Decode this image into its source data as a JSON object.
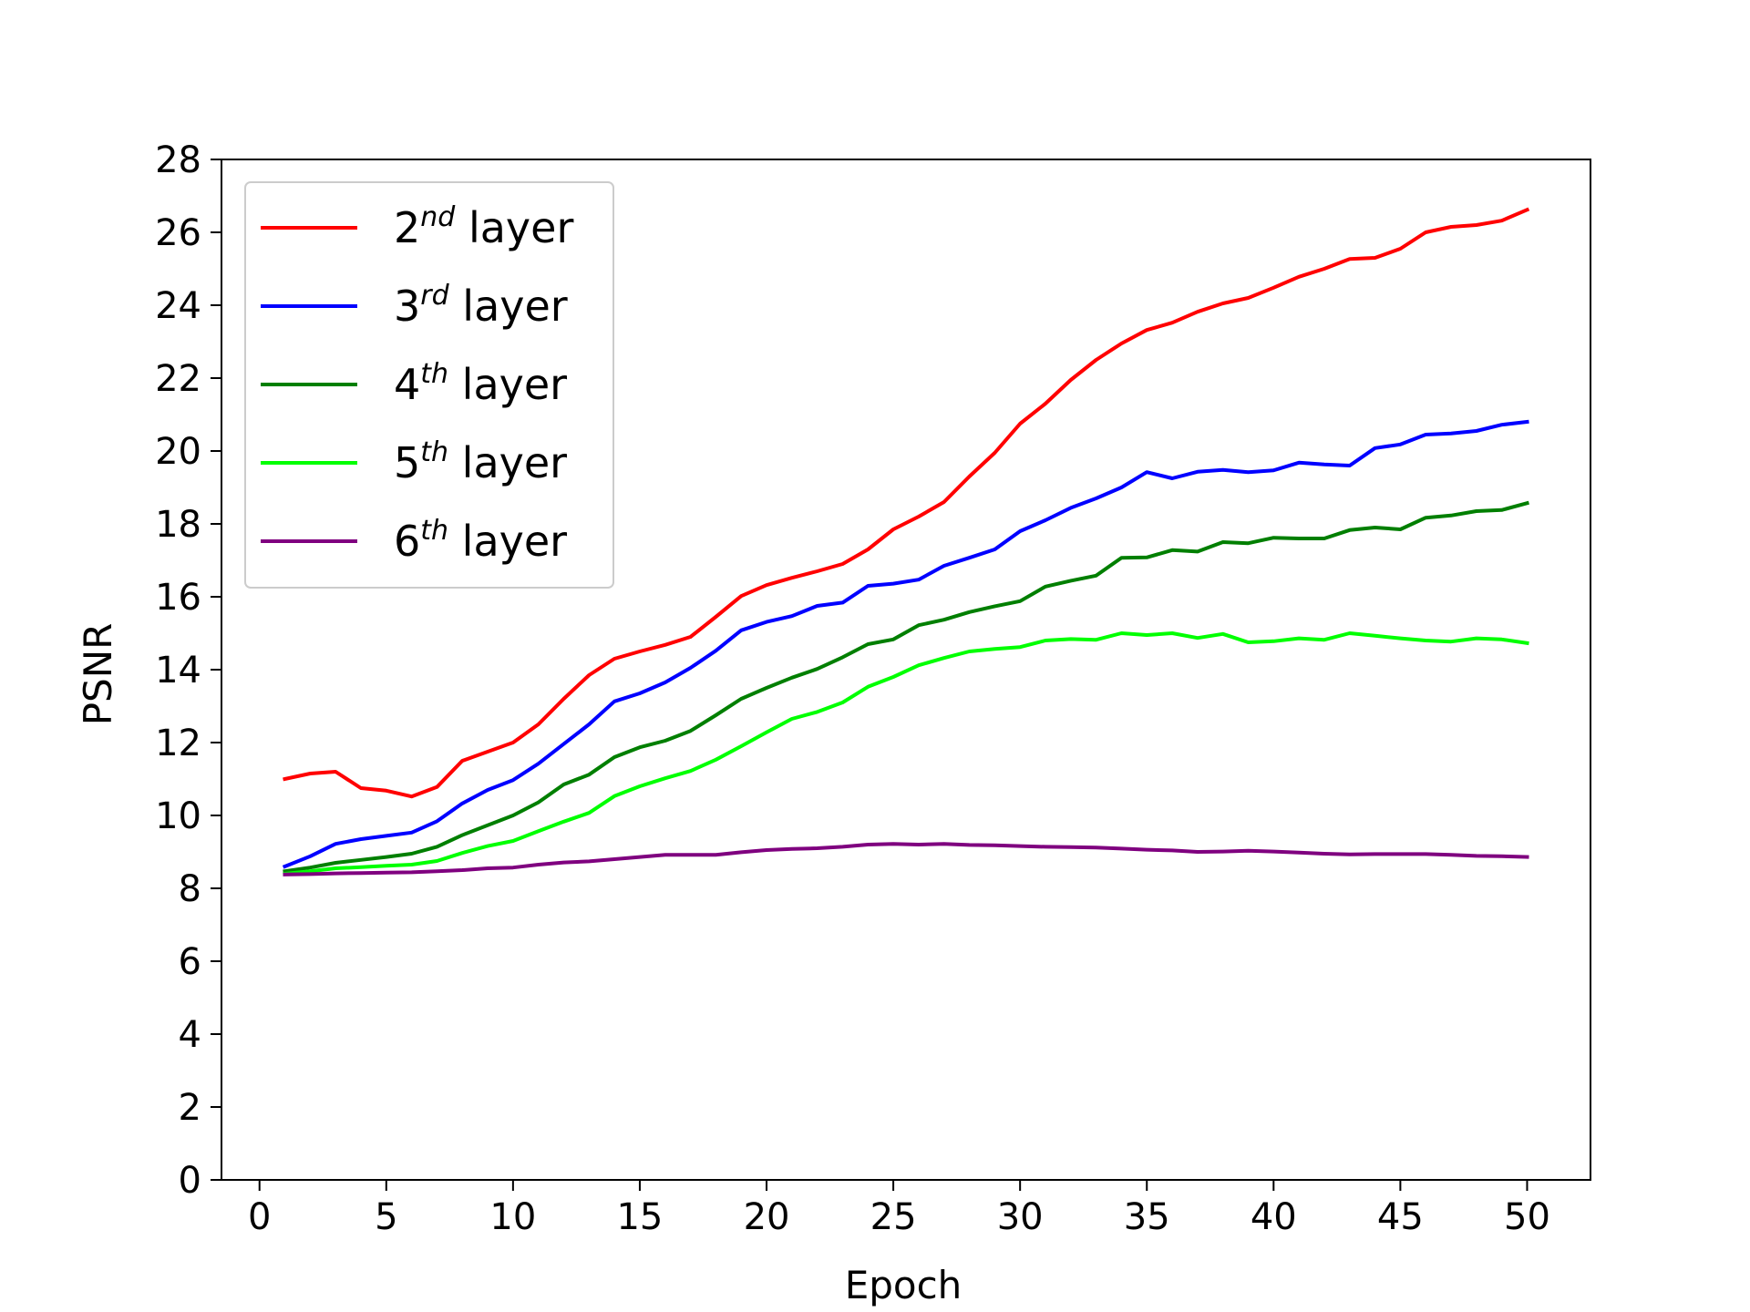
{
  "chart_data": {
    "type": "line",
    "xlabel": "Epoch",
    "ylabel": "PSNR",
    "xlim": [
      -1.5,
      52.5
    ],
    "ylim": [
      0,
      28
    ],
    "xticks": [
      0,
      5,
      10,
      15,
      20,
      25,
      30,
      35,
      40,
      45,
      50
    ],
    "yticks": [
      0,
      2,
      4,
      6,
      8,
      10,
      12,
      14,
      16,
      18,
      20,
      22,
      24,
      26,
      28
    ],
    "grid": false,
    "legend_position": "top-left",
    "x": [
      1,
      2,
      3,
      4,
      5,
      6,
      7,
      8,
      9,
      10,
      11,
      12,
      13,
      14,
      15,
      16,
      17,
      18,
      19,
      20,
      21,
      22,
      23,
      24,
      25,
      26,
      27,
      28,
      29,
      30,
      31,
      32,
      33,
      34,
      35,
      36,
      37,
      38,
      39,
      40,
      41,
      42,
      43,
      44,
      45,
      46,
      47,
      48,
      49,
      50
    ],
    "series": [
      {
        "name": "2nd layer",
        "label_base": "2",
        "label_sup": "nd",
        "label_rest": " layer",
        "color": "#ff0000",
        "values": [
          11.0,
          11.15,
          11.2,
          10.75,
          10.68,
          10.52,
          10.78,
          11.5,
          11.75,
          12.0,
          12.5,
          13.2,
          13.85,
          14.3,
          14.5,
          14.68,
          14.9,
          15.45,
          16.02,
          16.32,
          16.52,
          16.7,
          16.9,
          17.3,
          17.85,
          18.2,
          18.6,
          19.3,
          19.95,
          20.75,
          21.3,
          21.95,
          22.5,
          22.95,
          23.32,
          23.52,
          23.82,
          24.05,
          24.2,
          24.48,
          24.78,
          25.0,
          25.27,
          25.3,
          25.55,
          26.0,
          26.15,
          26.2,
          26.32,
          26.62
        ]
      },
      {
        "name": "3rd layer",
        "label_base": "3",
        "label_sup": "rd",
        "label_rest": " layer",
        "color": "#0000ff",
        "values": [
          8.6,
          8.88,
          9.22,
          9.35,
          9.44,
          9.53,
          9.84,
          10.33,
          10.7,
          10.97,
          11.42,
          11.96,
          12.5,
          13.13,
          13.35,
          13.65,
          14.05,
          14.52,
          15.08,
          15.31,
          15.47,
          15.75,
          15.84,
          16.3,
          16.36,
          16.47,
          16.85,
          17.07,
          17.3,
          17.8,
          18.1,
          18.44,
          18.7,
          19.0,
          19.42,
          19.25,
          19.43,
          19.48,
          19.42,
          19.47,
          19.68,
          19.63,
          19.6,
          20.08,
          20.18,
          20.45,
          20.48,
          20.55,
          20.72,
          20.8
        ]
      },
      {
        "name": "4th layer",
        "label_base": "4",
        "label_sup": "th",
        "label_rest": " layer",
        "color": "#007f00",
        "values": [
          8.47,
          8.57,
          8.7,
          8.78,
          8.86,
          8.95,
          9.14,
          9.46,
          9.73,
          10.0,
          10.36,
          10.85,
          11.12,
          11.6,
          11.87,
          12.05,
          12.32,
          12.75,
          13.2,
          13.5,
          13.78,
          14.02,
          14.34,
          14.7,
          14.83,
          15.22,
          15.37,
          15.58,
          15.74,
          15.88,
          16.28,
          16.44,
          16.58,
          17.07,
          17.08,
          17.28,
          17.24,
          17.5,
          17.47,
          17.62,
          17.6,
          17.6,
          17.83,
          17.9,
          17.85,
          18.17,
          18.23,
          18.35,
          18.38,
          18.57
        ]
      },
      {
        "name": "5th layer",
        "label_base": "5",
        "label_sup": "th",
        "label_rest": " layer",
        "color": "#00ff00",
        "values": [
          8.4,
          8.47,
          8.55,
          8.58,
          8.62,
          8.65,
          8.75,
          8.97,
          9.16,
          9.3,
          9.57,
          9.83,
          10.07,
          10.53,
          10.8,
          11.02,
          11.22,
          11.53,
          11.9,
          12.28,
          12.65,
          12.84,
          13.1,
          13.53,
          13.8,
          14.12,
          14.32,
          14.5,
          14.57,
          14.62,
          14.8,
          14.84,
          14.82,
          15.0,
          14.95,
          15.0,
          14.87,
          14.98,
          14.75,
          14.78,
          14.86,
          14.82,
          15.0,
          14.93,
          14.86,
          14.8,
          14.77,
          14.86,
          14.83,
          14.73
        ]
      },
      {
        "name": "6th layer",
        "label_base": "6",
        "label_sup": "th",
        "label_rest": " layer",
        "color": "#7f007f",
        "values": [
          8.38,
          8.39,
          8.41,
          8.42,
          8.43,
          8.44,
          8.47,
          8.5,
          8.55,
          8.57,
          8.65,
          8.71,
          8.74,
          8.8,
          8.86,
          8.92,
          8.92,
          8.92,
          8.99,
          9.05,
          9.08,
          9.1,
          9.14,
          9.2,
          9.22,
          9.2,
          9.22,
          9.19,
          9.18,
          9.16,
          9.14,
          9.13,
          9.12,
          9.09,
          9.06,
          9.04,
          9.0,
          9.01,
          9.03,
          9.01,
          8.98,
          8.95,
          8.93,
          8.94,
          8.94,
          8.94,
          8.92,
          8.89,
          8.88,
          8.86
        ]
      }
    ]
  }
}
